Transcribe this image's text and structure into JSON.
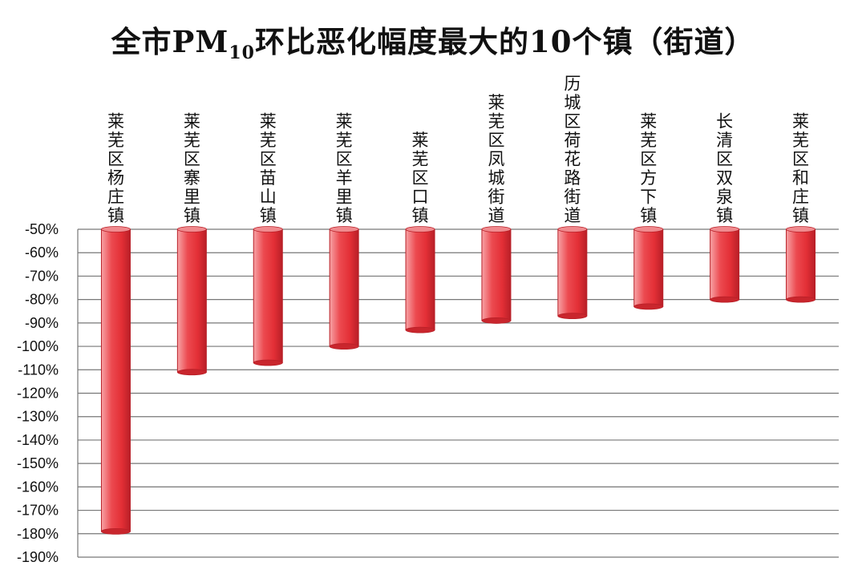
{
  "chart_data": {
    "type": "bar",
    "title_parts": {
      "before": "全市PM",
      "subscript": "10",
      "after": "环比恶化幅度最大的10个镇（街道）"
    },
    "categories": [
      "莱芜区杨庄镇",
      "莱芜区寨里镇",
      "莱芜区苗山镇",
      "莱芜区羊里镇",
      "莱芜区口镇",
      "莱芜区凤城街道",
      "历城区荷花路街道",
      "莱芜区方下镇",
      "长清区双泉镇",
      "莱芜区和庄镇"
    ],
    "values": [
      -179,
      -111,
      -107,
      -100,
      -93,
      -89,
      -87,
      -83,
      -80,
      -80
    ],
    "unit": "%",
    "ylim": [
      -190,
      -50
    ],
    "yticks": [
      -50,
      -60,
      -70,
      -80,
      -90,
      -100,
      -110,
      -120,
      -130,
      -140,
      -150,
      -160,
      -170,
      -180,
      -190
    ],
    "ytick_labels": [
      "-50%",
      "-60%",
      "-70%",
      "-80%",
      "-90%",
      "-100%",
      "-110%",
      "-120%",
      "-130%",
      "-140%",
      "-150%",
      "-160%",
      "-170%",
      "-180%",
      "-190%"
    ],
    "grid": true,
    "bar_color": "#e8333a",
    "bar_edge_color": "#b81f27"
  }
}
